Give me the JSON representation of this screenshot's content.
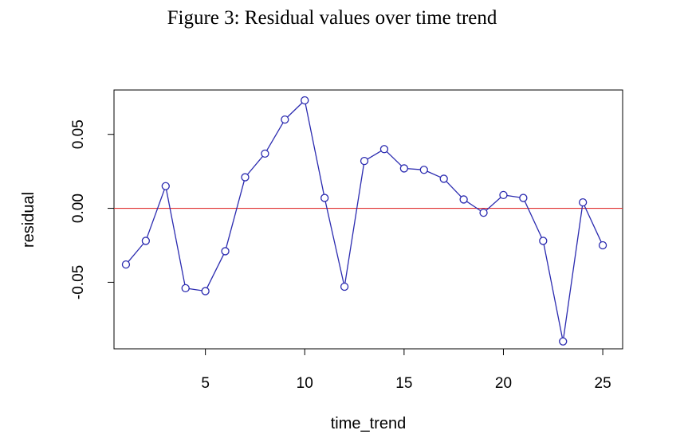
{
  "title": "Figure 3: Residual values over time trend",
  "chart_data": {
    "type": "line",
    "xlabel": "time_trend",
    "ylabel": "residual",
    "xlim": [
      0.4,
      26
    ],
    "ylim": [
      -0.095,
      0.08
    ],
    "xticks": [
      5,
      10,
      15,
      20,
      25
    ],
    "xtick_labels": [
      "5",
      "10",
      "15",
      "20",
      "25"
    ],
    "yticks": [
      -0.05,
      0.0,
      0.05
    ],
    "ytick_labels": [
      "-0.05",
      "0.00",
      "0.05"
    ],
    "grid": false,
    "reference_line": {
      "y": 0,
      "color": "#e03030"
    },
    "series": [
      {
        "color": "#2b2bb0",
        "marker": "circle",
        "x": [
          1,
          2,
          3,
          4,
          5,
          6,
          7,
          8,
          9,
          10,
          11,
          12,
          13,
          14,
          15,
          16,
          17,
          18,
          19,
          20,
          21,
          22,
          23,
          24,
          25
        ],
        "y": [
          -0.038,
          -0.022,
          0.015,
          -0.054,
          -0.056,
          -0.029,
          0.021,
          0.037,
          0.06,
          0.073,
          0.007,
          -0.053,
          0.032,
          0.04,
          0.027,
          0.026,
          0.02,
          0.006,
          -0.003,
          0.009,
          0.007,
          -0.022,
          -0.09,
          0.004,
          -0.025
        ]
      }
    ]
  }
}
